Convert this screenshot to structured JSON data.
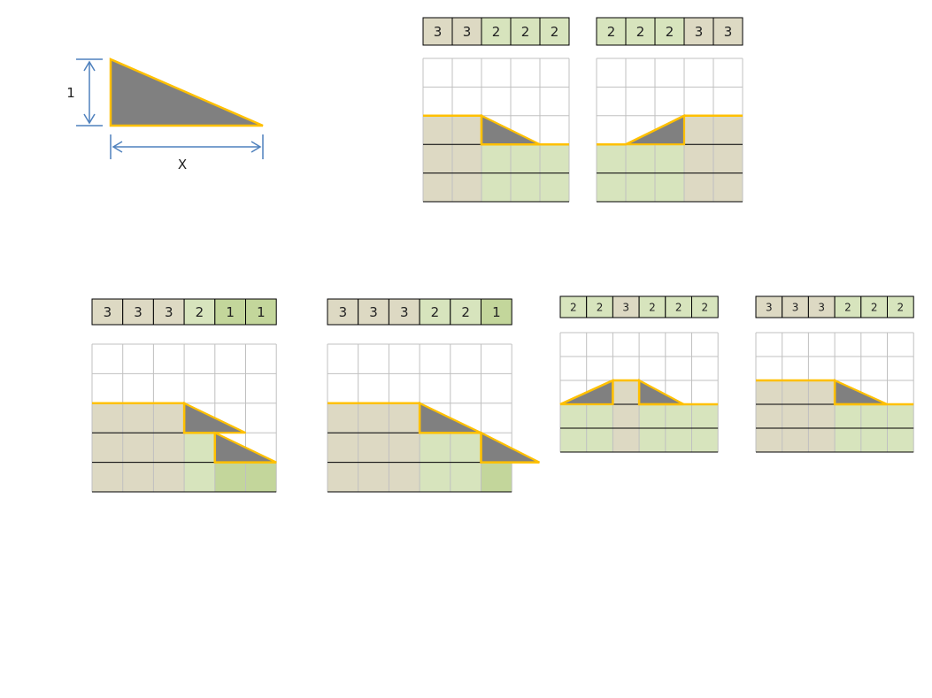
{
  "legend": {
    "height_label": "1",
    "width_label": "X"
  },
  "colors": {
    "tan": "#ddd9c3",
    "green_light": "#d7e4bd",
    "green_mid": "#c3d69b",
    "shape_fill": "#808080",
    "outline": "#ffc000",
    "grid": "#c0c0c0",
    "arrow": "#4f81bd"
  },
  "diagrams": [
    {
      "id": "d1",
      "heights": [
        "3",
        "3",
        "2",
        "2",
        "2"
      ]
    },
    {
      "id": "d2",
      "heights": [
        "2",
        "2",
        "2",
        "3",
        "3"
      ]
    },
    {
      "id": "d3",
      "heights": [
        "3",
        "3",
        "3",
        "2",
        "1",
        "1"
      ]
    },
    {
      "id": "d4",
      "heights": [
        "3",
        "3",
        "3",
        "2",
        "2",
        "1"
      ]
    },
    {
      "id": "d5",
      "heights": [
        "2",
        "2",
        "3",
        "2",
        "2",
        "2"
      ]
    },
    {
      "id": "d6",
      "heights": [
        "3",
        "3",
        "3",
        "2",
        "2",
        "2"
      ]
    }
  ]
}
